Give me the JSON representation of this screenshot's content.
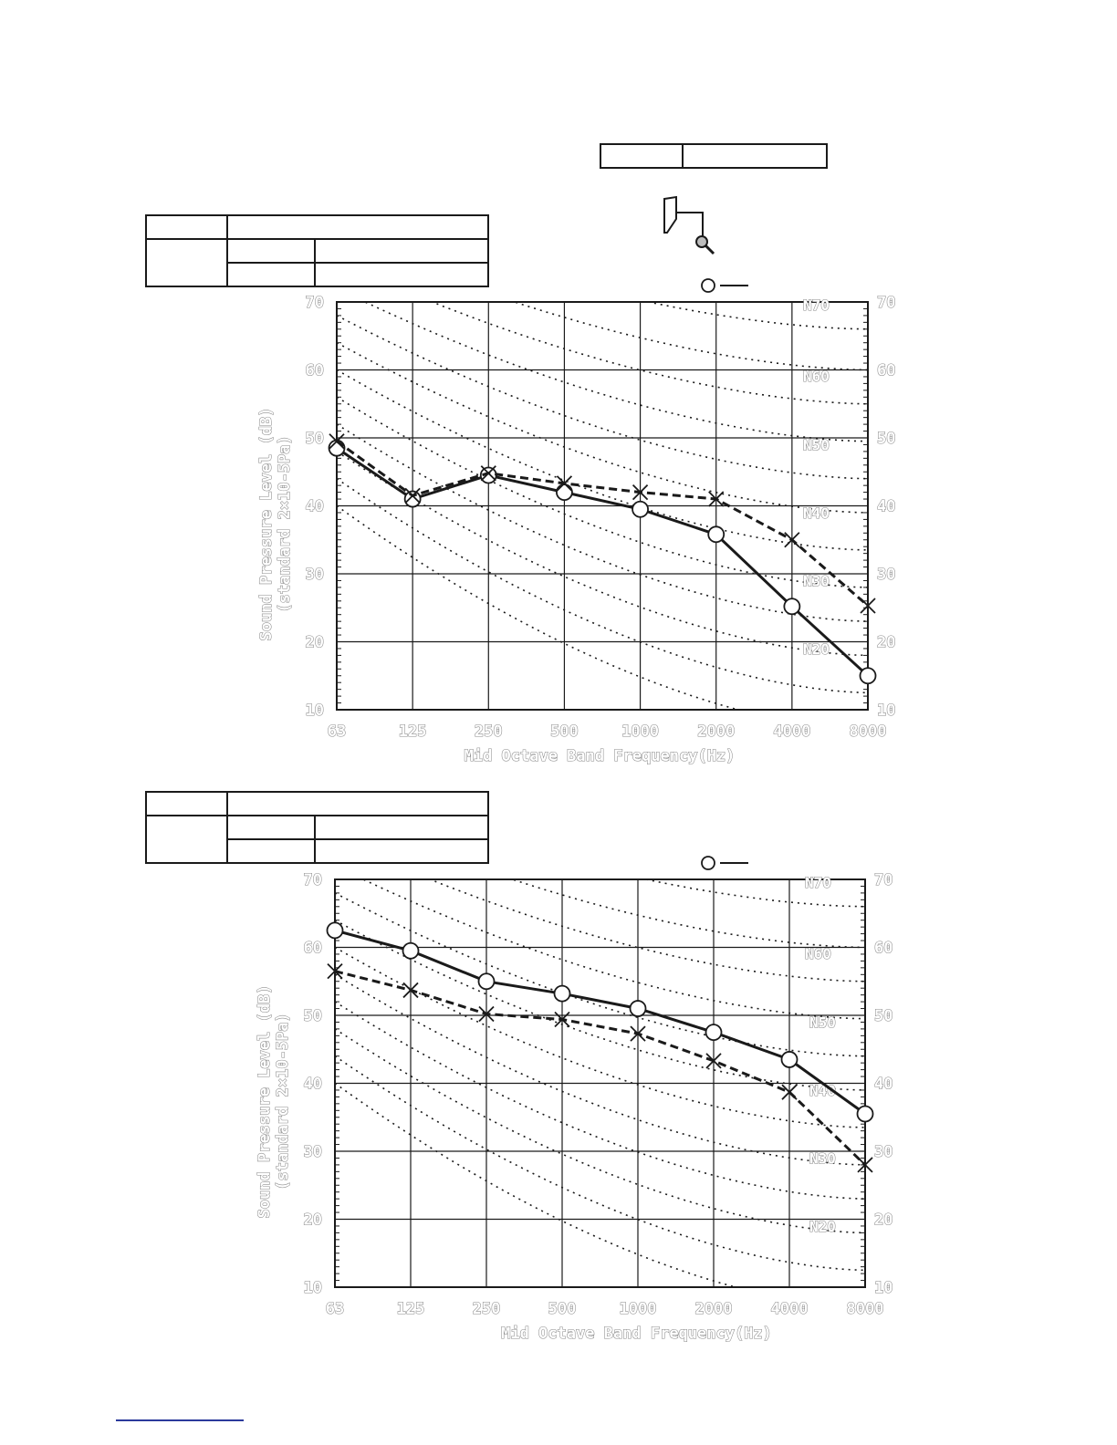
{
  "colors": {
    "series_line": "#1a1a1a",
    "grid": "#1a1a1a",
    "nc_curve": "#1a1a1a",
    "label_outline": "#8a8a8a",
    "rule": "#2b3a9c"
  },
  "icons": {
    "microphone": "microphone-icon",
    "unit": "wall-mounted-unit-icon",
    "legend_marker": "circle-marker-icon"
  },
  "chart_data": [
    {
      "type": "line",
      "title": "",
      "xlabel": "Mid Octave Band Frequency(Hz)",
      "ylabel": "Sound Pressure Level (dB)",
      "ylabel2": "(standard 2×10-5Pa)",
      "categories": [
        "63",
        "125",
        "250",
        "500",
        "1000",
        "2000",
        "4000",
        "8000"
      ],
      "ylim": [
        10,
        70
      ],
      "yticks": [
        "70",
        "60",
        "50",
        "40",
        "30",
        "20",
        "10"
      ],
      "grid": true,
      "nc_curves": [
        "N70",
        "N60",
        "N50",
        "N40",
        "N30",
        "N20"
      ],
      "series": [
        {
          "marker": "circle",
          "line": "solid",
          "values": [
            48.5,
            41,
            44.5,
            42,
            39.5,
            35.8,
            25.2,
            15
          ]
        },
        {
          "marker": "cross",
          "line": "dashed",
          "values": [
            49.5,
            41.5,
            44.8,
            43.3,
            42,
            41,
            35,
            25.3
          ]
        }
      ]
    },
    {
      "type": "line",
      "title": "",
      "xlabel": "Mid Octave Band Frequency(Hz)",
      "ylabel": "Sound Pressure Level (dB)",
      "ylabel2": "(standard 2×10-5Pa)",
      "categories": [
        "63",
        "125",
        "250",
        "500",
        "1000",
        "2000",
        "4000",
        "8000"
      ],
      "ylim": [
        10,
        70
      ],
      "yticks": [
        "70",
        "60",
        "50",
        "40",
        "30",
        "20",
        "10"
      ],
      "grid": true,
      "nc_curves": [
        "N70",
        "N60",
        "N50",
        "N40",
        "N30",
        "N20"
      ],
      "series": [
        {
          "marker": "circle",
          "line": "solid",
          "values": [
            62.5,
            59.5,
            55,
            53.2,
            51,
            47.5,
            43.5,
            35.5
          ]
        },
        {
          "marker": "cross",
          "line": "dashed",
          "values": [
            56.5,
            53.7,
            50.2,
            49.4,
            47.3,
            43.3,
            38.7,
            28
          ]
        }
      ]
    }
  ]
}
